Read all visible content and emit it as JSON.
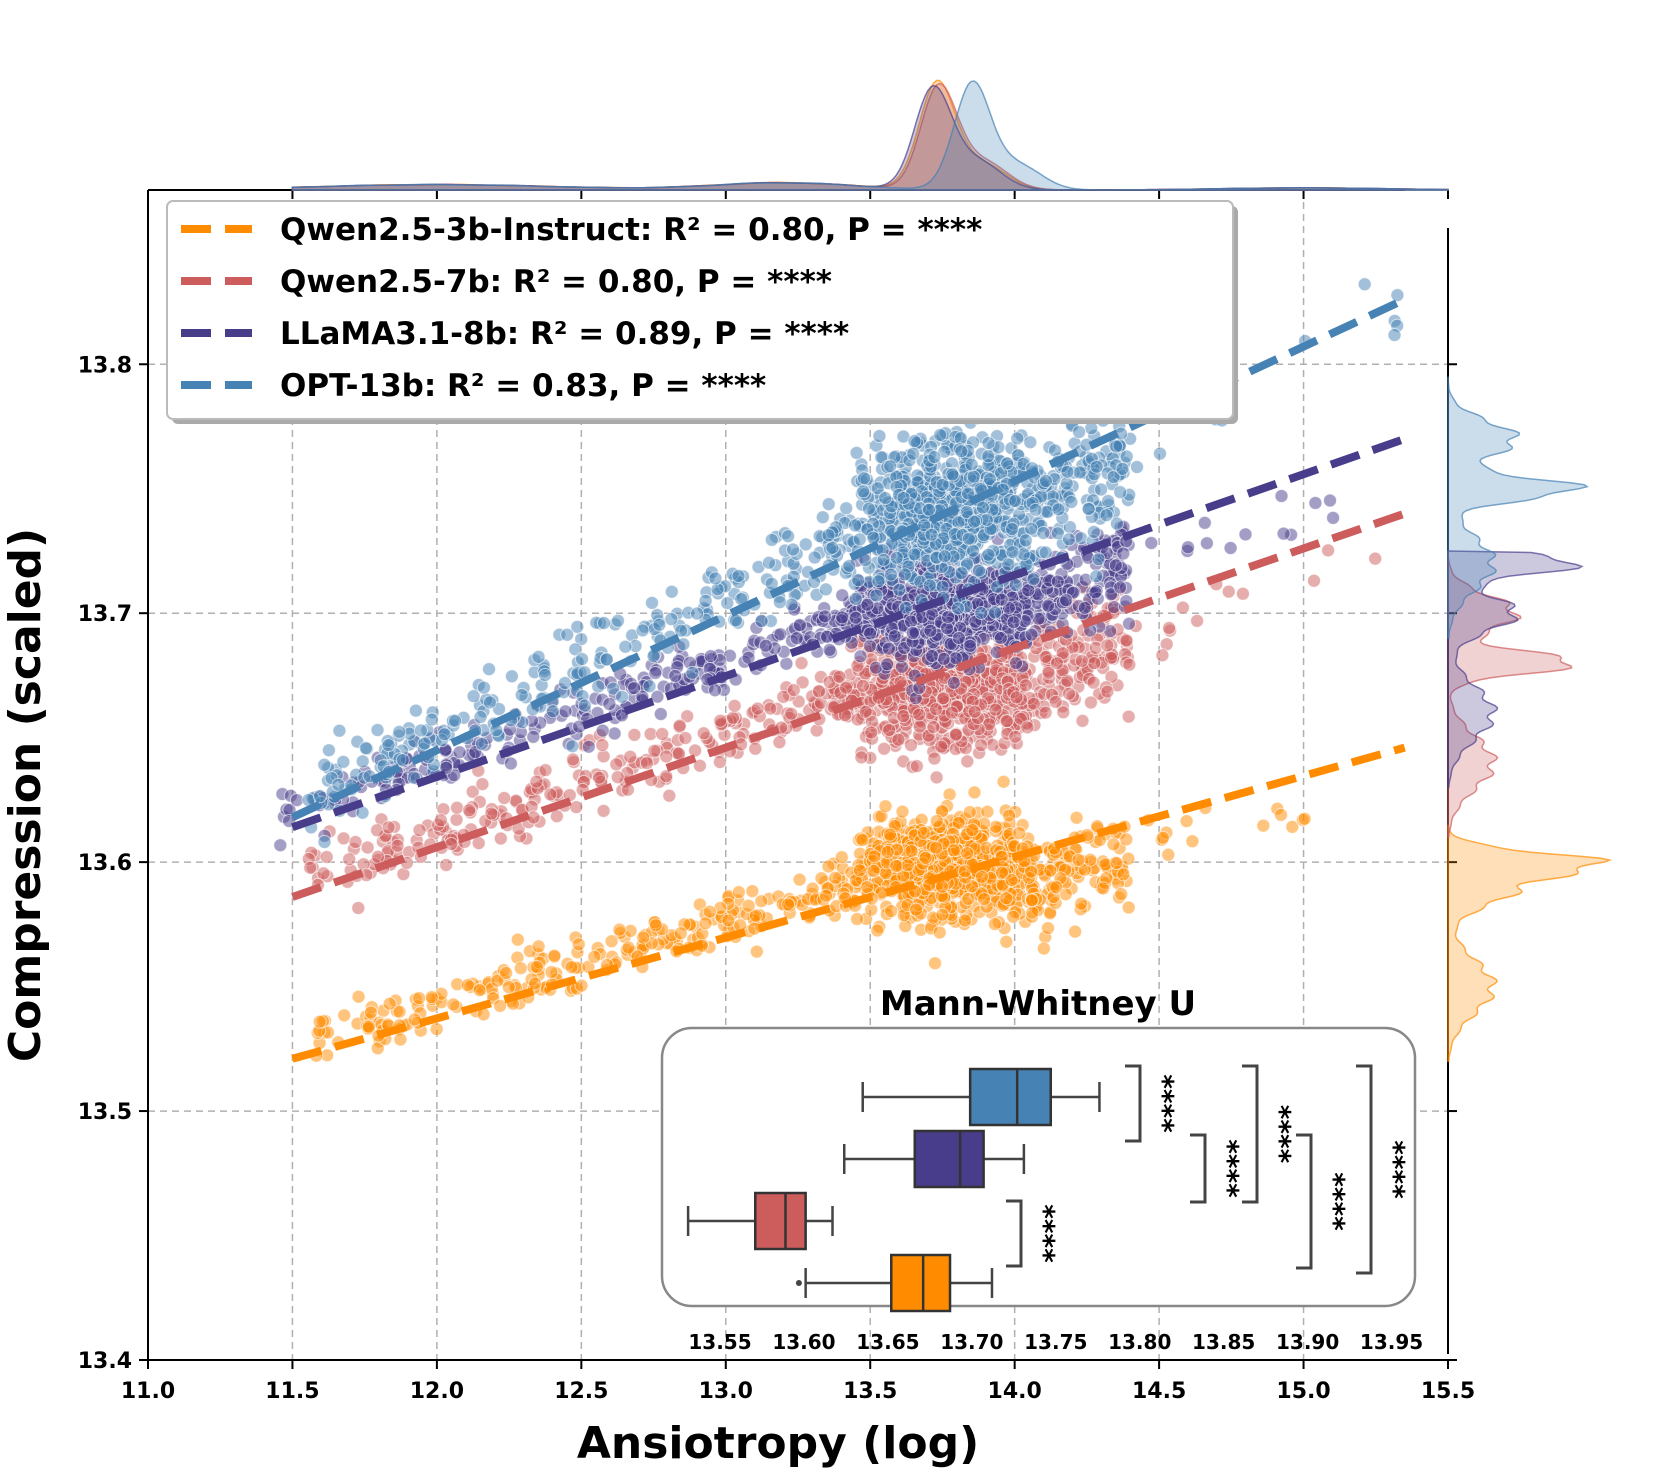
{
  "chart_data": {
    "type": "scatter",
    "xlabel": "Ansiotropy (log)",
    "ylabel": "Compression (scaled)",
    "xlim": [
      11.0,
      15.5
    ],
    "ylim": [
      13.4,
      13.87
    ],
    "xticks": [
      "11.0",
      "11.5",
      "12.0",
      "12.5",
      "13.0",
      "13.5",
      "14.0",
      "14.5",
      "15.0",
      "15.5"
    ],
    "yticks": [
      "13.4",
      "13.5",
      "13.6",
      "13.7",
      "13.8"
    ],
    "grid": true,
    "legend_position": "top-left",
    "series": [
      {
        "name": "Qwen2.5-3b-Instruct",
        "legend": "Qwen2.5-3b-Instruct: R² = 0.80, P = ****",
        "color": "#ff8c00",
        "fit": {
          "x": [
            11.5,
            15.35
          ],
          "y": [
            13.521,
            13.646
          ]
        },
        "points_summary": {
          "x_range": [
            11.58,
            15.15
          ],
          "x_center": 13.75,
          "y_center": 13.598,
          "y_spread": 0.01
        }
      },
      {
        "name": "Qwen2.5-7b",
        "legend": "Qwen2.5-7b: R² = 0.80, P = ****",
        "color": "#cd5c5c",
        "fit": {
          "x": [
            11.5,
            15.35
          ],
          "y": [
            13.586,
            13.74
          ]
        },
        "points_summary": {
          "x_range": [
            11.55,
            15.35
          ],
          "x_center": 13.75,
          "y_center": 13.67,
          "y_spread": 0.012
        }
      },
      {
        "name": "LLaMA3.1-8b",
        "legend": "LLaMA3.1-8b: R² = 0.89, P = ****",
        "color": "#483d8b",
        "fit": {
          "x": [
            11.5,
            15.35
          ],
          "y": [
            13.614,
            13.77
          ]
        },
        "points_summary": {
          "x_range": [
            11.45,
            15.25
          ],
          "x_center": 13.75,
          "y_center": 13.7,
          "y_spread": 0.01
        }
      },
      {
        "name": "OPT-13b",
        "legend": "OPT-13b: R² = 0.83, P = ****",
        "color": "#4682b4",
        "fit": {
          "x": [
            11.5,
            15.35
          ],
          "y": [
            13.618,
            13.826
          ]
        },
        "points_summary": {
          "x_range": [
            11.55,
            15.35
          ],
          "x_center": 13.75,
          "y_center": 13.74,
          "y_spread": 0.015
        }
      }
    ],
    "inset": {
      "title": "Mann-Whitney U",
      "type": "boxplot",
      "xlim": [
        13.522,
        13.958
      ],
      "xticks": [
        "13.55",
        "13.60",
        "13.65",
        "13.70",
        "13.75",
        "13.80",
        "13.85",
        "13.90",
        "13.95"
      ],
      "boxes": [
        {
          "series": "OPT-13b",
          "whisker_low": 13.635,
          "q1": 13.699,
          "median": 13.727,
          "q3": 13.747,
          "whisker_high": 13.776
        },
        {
          "series": "LLaMA3.1-8b",
          "whisker_low": 13.624,
          "q1": 13.666,
          "median": 13.693,
          "q3": 13.707,
          "whisker_high": 13.731
        },
        {
          "series": "Qwen2.5-7b",
          "whisker_low": 13.531,
          "q1": 13.571,
          "median": 13.589,
          "q3": 13.601,
          "whisker_high": 13.617
        },
        {
          "series": "Qwen2.5-3b-Instruct",
          "whisker_low": 13.601,
          "q1": 13.652,
          "median": 13.671,
          "q3": 13.687,
          "whisker_high": 13.712,
          "outlier": 13.597
        }
      ],
      "significance": [
        "****",
        "****",
        "****",
        "****",
        "****",
        "****"
      ]
    }
  }
}
